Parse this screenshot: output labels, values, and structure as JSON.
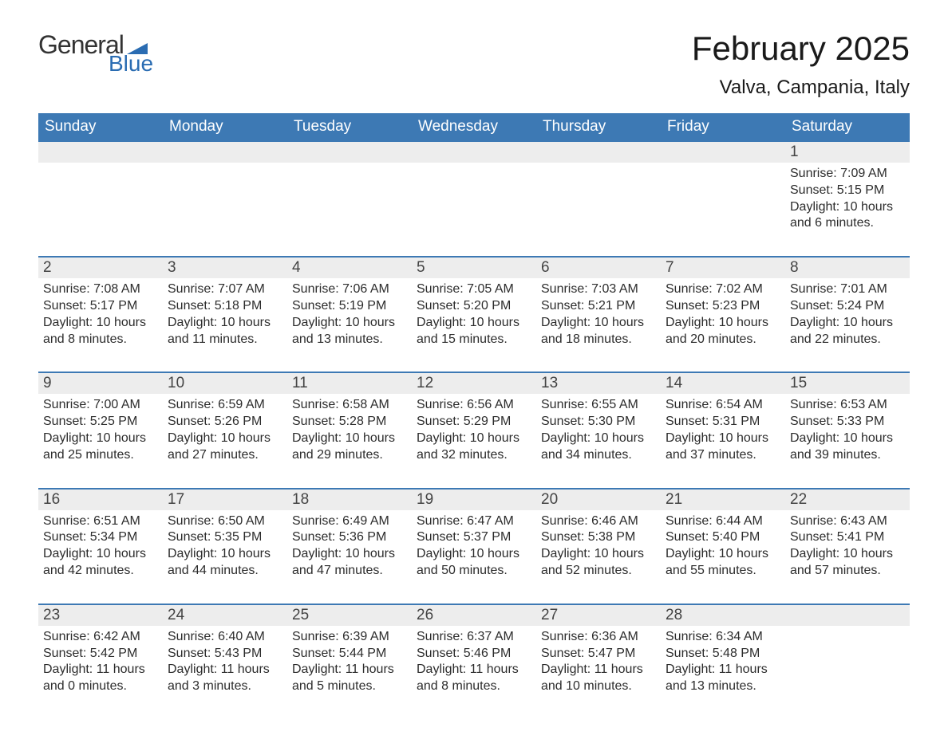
{
  "logo": {
    "text_general": "General",
    "text_blue": "Blue",
    "flag_color": "#2a6cb2"
  },
  "header": {
    "month_title": "February 2025",
    "location": "Valva, Campania, Italy"
  },
  "colors": {
    "header_blue": "#3d79b4",
    "day_bg": "#ededed",
    "divider_blue": "#3d79b4",
    "text_dark": "#2c2c2c",
    "logo_blue": "#2a6cb2",
    "background": "#ffffff"
  },
  "typography": {
    "month_title_fontsize": 42,
    "location_fontsize": 24,
    "weekday_fontsize": 19,
    "daynum_fontsize": 19,
    "body_fontsize": 16,
    "font_family": "Arial"
  },
  "calendar": {
    "weekday_labels": [
      "Sunday",
      "Monday",
      "Tuesday",
      "Wednesday",
      "Thursday",
      "Friday",
      "Saturday"
    ],
    "weeks": [
      [
        null,
        null,
        null,
        null,
        null,
        null,
        {
          "day": "1",
          "sunrise": "Sunrise: 7:09 AM",
          "sunset": "Sunset: 5:15 PM",
          "daylight": "Daylight: 10 hours and 6 minutes."
        }
      ],
      [
        {
          "day": "2",
          "sunrise": "Sunrise: 7:08 AM",
          "sunset": "Sunset: 5:17 PM",
          "daylight": "Daylight: 10 hours and 8 minutes."
        },
        {
          "day": "3",
          "sunrise": "Sunrise: 7:07 AM",
          "sunset": "Sunset: 5:18 PM",
          "daylight": "Daylight: 10 hours and 11 minutes."
        },
        {
          "day": "4",
          "sunrise": "Sunrise: 7:06 AM",
          "sunset": "Sunset: 5:19 PM",
          "daylight": "Daylight: 10 hours and 13 minutes."
        },
        {
          "day": "5",
          "sunrise": "Sunrise: 7:05 AM",
          "sunset": "Sunset: 5:20 PM",
          "daylight": "Daylight: 10 hours and 15 minutes."
        },
        {
          "day": "6",
          "sunrise": "Sunrise: 7:03 AM",
          "sunset": "Sunset: 5:21 PM",
          "daylight": "Daylight: 10 hours and 18 minutes."
        },
        {
          "day": "7",
          "sunrise": "Sunrise: 7:02 AM",
          "sunset": "Sunset: 5:23 PM",
          "daylight": "Daylight: 10 hours and 20 minutes."
        },
        {
          "day": "8",
          "sunrise": "Sunrise: 7:01 AM",
          "sunset": "Sunset: 5:24 PM",
          "daylight": "Daylight: 10 hours and 22 minutes."
        }
      ],
      [
        {
          "day": "9",
          "sunrise": "Sunrise: 7:00 AM",
          "sunset": "Sunset: 5:25 PM",
          "daylight": "Daylight: 10 hours and 25 minutes."
        },
        {
          "day": "10",
          "sunrise": "Sunrise: 6:59 AM",
          "sunset": "Sunset: 5:26 PM",
          "daylight": "Daylight: 10 hours and 27 minutes."
        },
        {
          "day": "11",
          "sunrise": "Sunrise: 6:58 AM",
          "sunset": "Sunset: 5:28 PM",
          "daylight": "Daylight: 10 hours and 29 minutes."
        },
        {
          "day": "12",
          "sunrise": "Sunrise: 6:56 AM",
          "sunset": "Sunset: 5:29 PM",
          "daylight": "Daylight: 10 hours and 32 minutes."
        },
        {
          "day": "13",
          "sunrise": "Sunrise: 6:55 AM",
          "sunset": "Sunset: 5:30 PM",
          "daylight": "Daylight: 10 hours and 34 minutes."
        },
        {
          "day": "14",
          "sunrise": "Sunrise: 6:54 AM",
          "sunset": "Sunset: 5:31 PM",
          "daylight": "Daylight: 10 hours and 37 minutes."
        },
        {
          "day": "15",
          "sunrise": "Sunrise: 6:53 AM",
          "sunset": "Sunset: 5:33 PM",
          "daylight": "Daylight: 10 hours and 39 minutes."
        }
      ],
      [
        {
          "day": "16",
          "sunrise": "Sunrise: 6:51 AM",
          "sunset": "Sunset: 5:34 PM",
          "daylight": "Daylight: 10 hours and 42 minutes."
        },
        {
          "day": "17",
          "sunrise": "Sunrise: 6:50 AM",
          "sunset": "Sunset: 5:35 PM",
          "daylight": "Daylight: 10 hours and 44 minutes."
        },
        {
          "day": "18",
          "sunrise": "Sunrise: 6:49 AM",
          "sunset": "Sunset: 5:36 PM",
          "daylight": "Daylight: 10 hours and 47 minutes."
        },
        {
          "day": "19",
          "sunrise": "Sunrise: 6:47 AM",
          "sunset": "Sunset: 5:37 PM",
          "daylight": "Daylight: 10 hours and 50 minutes."
        },
        {
          "day": "20",
          "sunrise": "Sunrise: 6:46 AM",
          "sunset": "Sunset: 5:38 PM",
          "daylight": "Daylight: 10 hours and 52 minutes."
        },
        {
          "day": "21",
          "sunrise": "Sunrise: 6:44 AM",
          "sunset": "Sunset: 5:40 PM",
          "daylight": "Daylight: 10 hours and 55 minutes."
        },
        {
          "day": "22",
          "sunrise": "Sunrise: 6:43 AM",
          "sunset": "Sunset: 5:41 PM",
          "daylight": "Daylight: 10 hours and 57 minutes."
        }
      ],
      [
        {
          "day": "23",
          "sunrise": "Sunrise: 6:42 AM",
          "sunset": "Sunset: 5:42 PM",
          "daylight": "Daylight: 11 hours and 0 minutes."
        },
        {
          "day": "24",
          "sunrise": "Sunrise: 6:40 AM",
          "sunset": "Sunset: 5:43 PM",
          "daylight": "Daylight: 11 hours and 3 minutes."
        },
        {
          "day": "25",
          "sunrise": "Sunrise: 6:39 AM",
          "sunset": "Sunset: 5:44 PM",
          "daylight": "Daylight: 11 hours and 5 minutes."
        },
        {
          "day": "26",
          "sunrise": "Sunrise: 6:37 AM",
          "sunset": "Sunset: 5:46 PM",
          "daylight": "Daylight: 11 hours and 8 minutes."
        },
        {
          "day": "27",
          "sunrise": "Sunrise: 6:36 AM",
          "sunset": "Sunset: 5:47 PM",
          "daylight": "Daylight: 11 hours and 10 minutes."
        },
        {
          "day": "28",
          "sunrise": "Sunrise: 6:34 AM",
          "sunset": "Sunset: 5:48 PM",
          "daylight": "Daylight: 11 hours and 13 minutes."
        },
        null
      ]
    ]
  }
}
